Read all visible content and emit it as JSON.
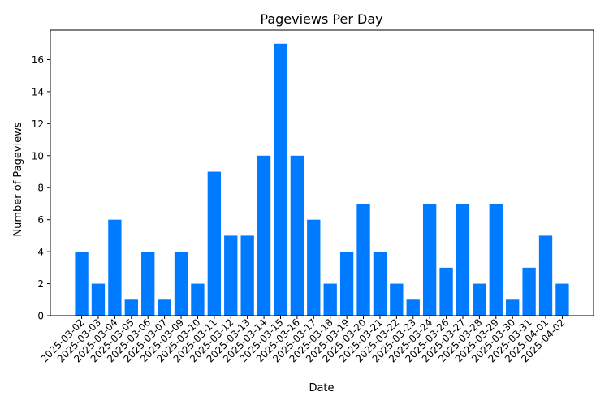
{
  "chart_data": {
    "type": "bar",
    "title": "Pageviews Per Day",
    "xlabel": "Date",
    "ylabel": "Number of Pageviews",
    "categories": [
      "2025-03-02",
      "2025-03-03",
      "2025-03-04",
      "2025-03-05",
      "2025-03-06",
      "2025-03-07",
      "2025-03-09",
      "2025-03-10",
      "2025-03-11",
      "2025-03-12",
      "2025-03-13",
      "2025-03-14",
      "2025-03-15",
      "2025-03-16",
      "2025-03-17",
      "2025-03-18",
      "2025-03-19",
      "2025-03-20",
      "2025-03-21",
      "2025-03-22",
      "2025-03-23",
      "2025-03-24",
      "2025-03-26",
      "2025-03-27",
      "2025-03-28",
      "2025-03-29",
      "2025-03-30",
      "2025-03-31",
      "2025-04-01",
      "2025-04-02"
    ],
    "values": [
      4,
      2,
      6,
      1,
      4,
      1,
      4,
      2,
      9,
      5,
      5,
      10,
      17,
      10,
      6,
      2,
      4,
      7,
      4,
      2,
      1,
      7,
      3,
      7,
      2,
      7,
      1,
      3,
      5,
      2
    ],
    "ylim": [
      0,
      17.85
    ],
    "yticks": [
      0,
      2,
      4,
      6,
      8,
      10,
      12,
      14,
      16
    ],
    "bar_color": "#007bff",
    "grid": false,
    "legend": false
  }
}
